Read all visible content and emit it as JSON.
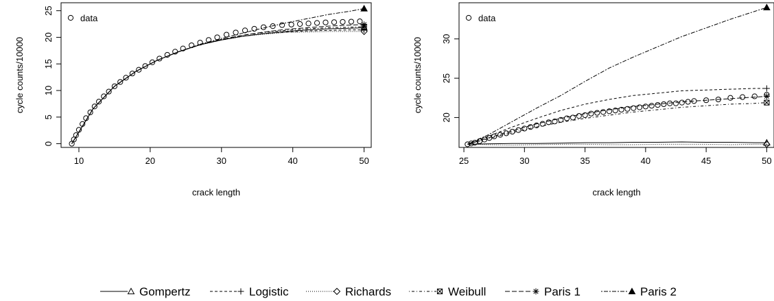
{
  "chart_data": [
    {
      "type": "scatter",
      "xlabel": "crack length",
      "ylabel": "cycle counts/10000",
      "xlim": [
        7.5,
        51
      ],
      "ylim": [
        -0.7,
        26.5
      ],
      "xticks": [
        10,
        20,
        30,
        40,
        50
      ],
      "yticks": [
        0,
        5,
        10,
        15,
        20,
        25
      ],
      "grid": false,
      "legend": {
        "position": "top-left",
        "entries": [
          "data"
        ]
      },
      "data": {
        "name": "data",
        "x": [
          9.0,
          9.3,
          9.6,
          10.0,
          10.5,
          11.0,
          11.6,
          12.2,
          12.8,
          13.5,
          14.2,
          15.0,
          15.8,
          16.6,
          17.5,
          18.4,
          19.3,
          20.3,
          21.3,
          22.4,
          23.5,
          24.6,
          25.8,
          27.0,
          28.2,
          29.4,
          30.7,
          32.0,
          33.3,
          34.6,
          35.9,
          37.2,
          38.5,
          39.8,
          41.0,
          42.2,
          43.4,
          44.6,
          45.8,
          47.0,
          48.2,
          49.4
        ],
        "y": [
          0.0,
          0.8,
          1.6,
          2.6,
          3.7,
          4.8,
          5.9,
          7.0,
          7.9,
          8.9,
          9.8,
          10.8,
          11.6,
          12.4,
          13.2,
          13.9,
          14.6,
          15.3,
          16.0,
          16.7,
          17.3,
          17.9,
          18.5,
          19.0,
          19.5,
          20.0,
          20.5,
          20.9,
          21.3,
          21.6,
          21.9,
          22.1,
          22.3,
          22.4,
          22.5,
          22.6,
          22.7,
          22.8,
          22.85,
          22.9,
          22.95,
          23.0
        ]
      },
      "models": [
        {
          "name": "Gompertz",
          "x": [
            9.0,
            12.0,
            15.0,
            18.0,
            21.0,
            24.0,
            27.0,
            30.0,
            33.0,
            36.0,
            39.0,
            42.0,
            45.0,
            48.0,
            50.0
          ],
          "y": [
            0.0,
            6.6,
            10.8,
            13.6,
            15.7,
            17.3,
            18.6,
            19.5,
            20.2,
            20.7,
            21.1,
            21.4,
            21.6,
            21.7,
            21.8
          ]
        },
        {
          "name": "Logistic",
          "x": [
            9.0,
            12.0,
            15.0,
            18.0,
            21.0,
            24.0,
            27.0,
            30.0,
            33.0,
            36.0,
            39.0,
            42.0,
            45.0,
            48.0,
            50.0
          ],
          "y": [
            0.0,
            6.6,
            10.8,
            13.6,
            15.7,
            17.3,
            18.6,
            19.5,
            20.2,
            20.7,
            21.0,
            21.2,
            21.3,
            21.4,
            21.4
          ]
        },
        {
          "name": "Richards",
          "x": [
            9.0,
            12.0,
            15.0,
            18.0,
            21.0,
            24.0,
            27.0,
            30.0,
            33.0,
            36.0,
            39.0,
            42.0,
            45.0,
            48.0,
            50.0
          ],
          "y": [
            0.0,
            6.6,
            10.8,
            13.6,
            15.7,
            17.3,
            18.6,
            19.5,
            20.2,
            20.6,
            20.9,
            21.0,
            21.1,
            21.1,
            21.1
          ]
        },
        {
          "name": "Weibull",
          "x": [
            9.0,
            12.0,
            15.0,
            18.0,
            21.0,
            24.0,
            27.0,
            30.0,
            33.0,
            36.0,
            39.0,
            42.0,
            45.0,
            48.0,
            50.0
          ],
          "y": [
            0.0,
            6.6,
            10.8,
            13.6,
            15.7,
            17.3,
            18.6,
            19.6,
            20.4,
            20.9,
            21.3,
            21.6,
            21.8,
            21.9,
            22.0
          ]
        },
        {
          "name": "Paris 1",
          "x": [
            9.0,
            12.0,
            15.0,
            18.0,
            21.0,
            24.0,
            27.0,
            30.0,
            33.0,
            36.0,
            39.0,
            42.0,
            45.0,
            48.0,
            50.0
          ],
          "y": [
            0.0,
            6.6,
            10.8,
            13.6,
            15.7,
            17.3,
            18.6,
            19.6,
            20.4,
            21.0,
            21.5,
            21.8,
            22.1,
            22.3,
            22.4
          ]
        },
        {
          "name": "Paris 2",
          "x": [
            9.0,
            12.0,
            15.0,
            18.0,
            21.0,
            24.0,
            27.0,
            30.0,
            33.0,
            36.0,
            39.0,
            42.0,
            45.0,
            48.0,
            50.0
          ],
          "y": [
            0.0,
            6.6,
            10.8,
            13.6,
            15.7,
            17.3,
            18.7,
            19.8,
            20.8,
            21.8,
            22.7,
            23.5,
            24.3,
            24.9,
            25.4
          ]
        }
      ]
    },
    {
      "type": "scatter",
      "xlabel": "crack length",
      "ylabel": "cycle counts/10000",
      "xlim": [
        24.6,
        50.6
      ],
      "ylim": [
        16.2,
        34.6
      ],
      "xticks": [
        25,
        30,
        35,
        40,
        45,
        50
      ],
      "yticks": [
        20,
        25,
        30
      ],
      "grid": false,
      "legend": {
        "position": "top-left",
        "entries": [
          "data"
        ]
      },
      "data": {
        "name": "data",
        "x": [
          25.3,
          25.6,
          25.9,
          26.3,
          26.7,
          27.1,
          27.5,
          28.0,
          28.5,
          29.0,
          29.5,
          30.0,
          30.5,
          31.0,
          31.5,
          32.0,
          32.5,
          33.0,
          33.5,
          34.0,
          34.5,
          35.0,
          35.5,
          36.0,
          36.5,
          37.0,
          37.5,
          38.0,
          38.5,
          39.0,
          39.5,
          40.0,
          40.5,
          41.0,
          41.5,
          42.0,
          42.5,
          43.0,
          43.5,
          44.0,
          45.0,
          46.0,
          47.0,
          48.0,
          49.0,
          50.0
        ],
        "y": [
          16.6,
          16.7,
          16.8,
          17.0,
          17.2,
          17.4,
          17.6,
          17.8,
          18.0,
          18.2,
          18.4,
          18.6,
          18.8,
          19.0,
          19.2,
          19.4,
          19.5,
          19.7,
          19.9,
          20.0,
          20.2,
          20.3,
          20.5,
          20.6,
          20.7,
          20.8,
          20.9,
          21.0,
          21.1,
          21.2,
          21.3,
          21.4,
          21.5,
          21.6,
          21.7,
          21.8,
          21.8,
          21.9,
          22.0,
          22.1,
          22.2,
          22.3,
          22.5,
          22.6,
          22.7,
          22.9
        ]
      },
      "models": [
        {
          "name": "Gompertz",
          "x": [
            25.3,
            27.0,
            29.0,
            31.0,
            33.0,
            35.0,
            37.0,
            39.0,
            41.0,
            43.0,
            45.0,
            47.0,
            49.0,
            50.0
          ],
          "y": [
            16.6,
            16.65,
            16.7,
            16.7,
            16.75,
            16.8,
            16.8,
            16.85,
            16.85,
            16.9,
            16.85,
            16.85,
            16.8,
            16.8
          ]
        },
        {
          "name": "Logistic",
          "x": [
            25.3,
            27.0,
            29.0,
            31.0,
            33.0,
            35.0,
            37.0,
            39.0,
            41.0,
            43.0,
            45.0,
            47.0,
            49.0,
            50.0
          ],
          "y": [
            16.6,
            17.6,
            18.8,
            19.9,
            20.9,
            21.7,
            22.3,
            22.8,
            23.1,
            23.4,
            23.5,
            23.6,
            23.7,
            23.7
          ]
        },
        {
          "name": "Richards",
          "x": [
            25.3,
            27.0,
            29.0,
            31.0,
            33.0,
            35.0,
            37.0,
            39.0,
            41.0,
            43.0,
            45.0,
            47.0,
            49.0,
            50.0
          ],
          "y": [
            16.6,
            16.55,
            16.5,
            16.55,
            16.6,
            16.6,
            16.55,
            16.55,
            16.6,
            16.6,
            16.6,
            16.55,
            16.6,
            16.6
          ]
        },
        {
          "name": "Weibull",
          "x": [
            25.3,
            27.0,
            29.0,
            31.0,
            33.0,
            35.0,
            37.0,
            39.0,
            41.0,
            43.0,
            45.0,
            47.0,
            49.0,
            50.0
          ],
          "y": [
            16.6,
            17.3,
            18.1,
            18.8,
            19.4,
            19.9,
            20.3,
            20.7,
            21.0,
            21.3,
            21.5,
            21.7,
            21.8,
            21.9
          ]
        },
        {
          "name": "Paris 1",
          "x": [
            25.3,
            27.0,
            29.0,
            31.0,
            33.0,
            35.0,
            37.0,
            39.0,
            41.0,
            43.0,
            45.0,
            47.0,
            49.0,
            50.0
          ],
          "y": [
            16.6,
            17.4,
            18.3,
            19.2,
            19.9,
            20.5,
            21.0,
            21.4,
            21.7,
            22.0,
            22.2,
            22.4,
            22.6,
            22.7
          ]
        },
        {
          "name": "Paris 2",
          "x": [
            25.3,
            27.0,
            29.0,
            31.0,
            33.0,
            35.0,
            37.0,
            39.0,
            41.0,
            43.0,
            45.0,
            47.0,
            49.0,
            50.0
          ],
          "y": [
            16.6,
            17.8,
            19.5,
            21.2,
            22.8,
            24.6,
            26.3,
            27.7,
            29.0,
            30.3,
            31.4,
            32.5,
            33.5,
            34.0
          ]
        }
      ]
    }
  ],
  "legend": {
    "items": [
      {
        "label": "Gompertz",
        "style": "solid",
        "marker": "triangle-open"
      },
      {
        "label": "Logistic",
        "style": "dashed",
        "marker": "plus"
      },
      {
        "label": "Richards",
        "style": "dotted",
        "marker": "diamond-open"
      },
      {
        "label": "Weibull",
        "style": "dotdash",
        "marker": "square-x"
      },
      {
        "label": "Paris 1",
        "style": "longdash",
        "marker": "star"
      },
      {
        "label": "Paris 2",
        "style": "twodash",
        "marker": "triangle-filled"
      }
    ]
  }
}
